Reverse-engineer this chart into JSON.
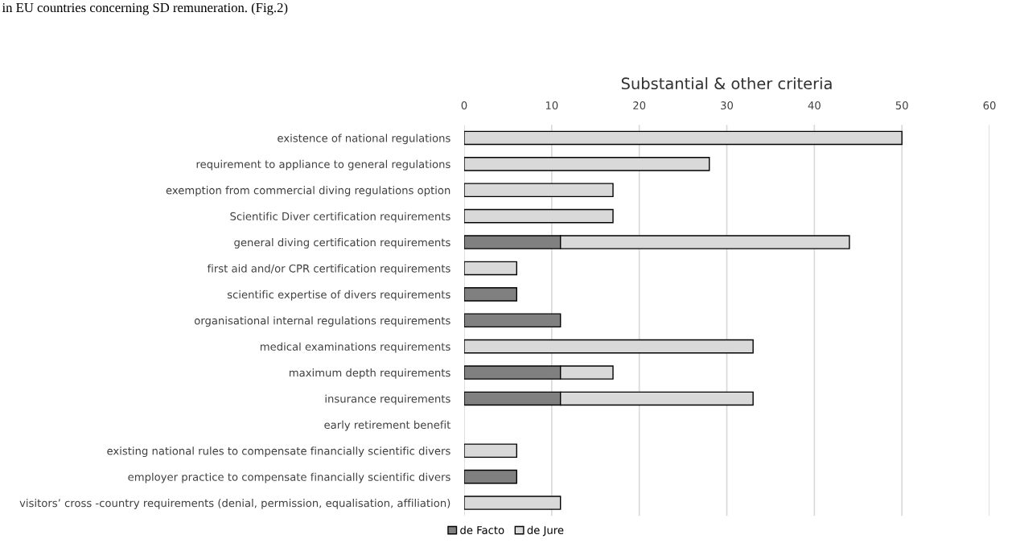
{
  "chart_data": {
    "type": "bar",
    "orientation": "horizontal",
    "stacked": true,
    "title": "Substantial & other criteria",
    "annotations": [
      "in EU countries concerning SD remuneration. (Fig.2)"
    ],
    "categories": [
      "existence of national regulations",
      "requirement to appliance to general regulations",
      "exemption from commercial diving regulations option",
      "Scientific Diver certification requirements",
      "general diving certification requirements",
      "first aid and/or CPR certification requirements",
      "scientific expertise of divers requirements",
      "organisational internal regulations requirements",
      "medical examinations requirements",
      "maximum depth requirements",
      "insurance requirements",
      "early retirement benefit",
      "existing national rules to compensate financially scientific divers",
      "employer practice to compensate financially scientific divers",
      "visitors’ cross -country requirements (denial, permission, equalisation, affiliation)"
    ],
    "series": [
      {
        "name": "de Facto",
        "color": "#808080",
        "values": [
          null,
          null,
          null,
          null,
          11,
          null,
          6,
          11,
          null,
          11,
          11,
          null,
          null,
          6,
          null
        ]
      },
      {
        "name": "de Jure",
        "color": "#d9d9d9",
        "values": [
          50,
          28,
          17,
          17,
          33,
          6,
          null,
          null,
          33,
          6,
          22,
          null,
          6,
          null,
          11
        ]
      }
    ],
    "xlim": [
      0,
      60
    ],
    "xticks": [
      0,
      10,
      20,
      30,
      40,
      50,
      60
    ],
    "grid": "x",
    "legend": "bottom"
  }
}
